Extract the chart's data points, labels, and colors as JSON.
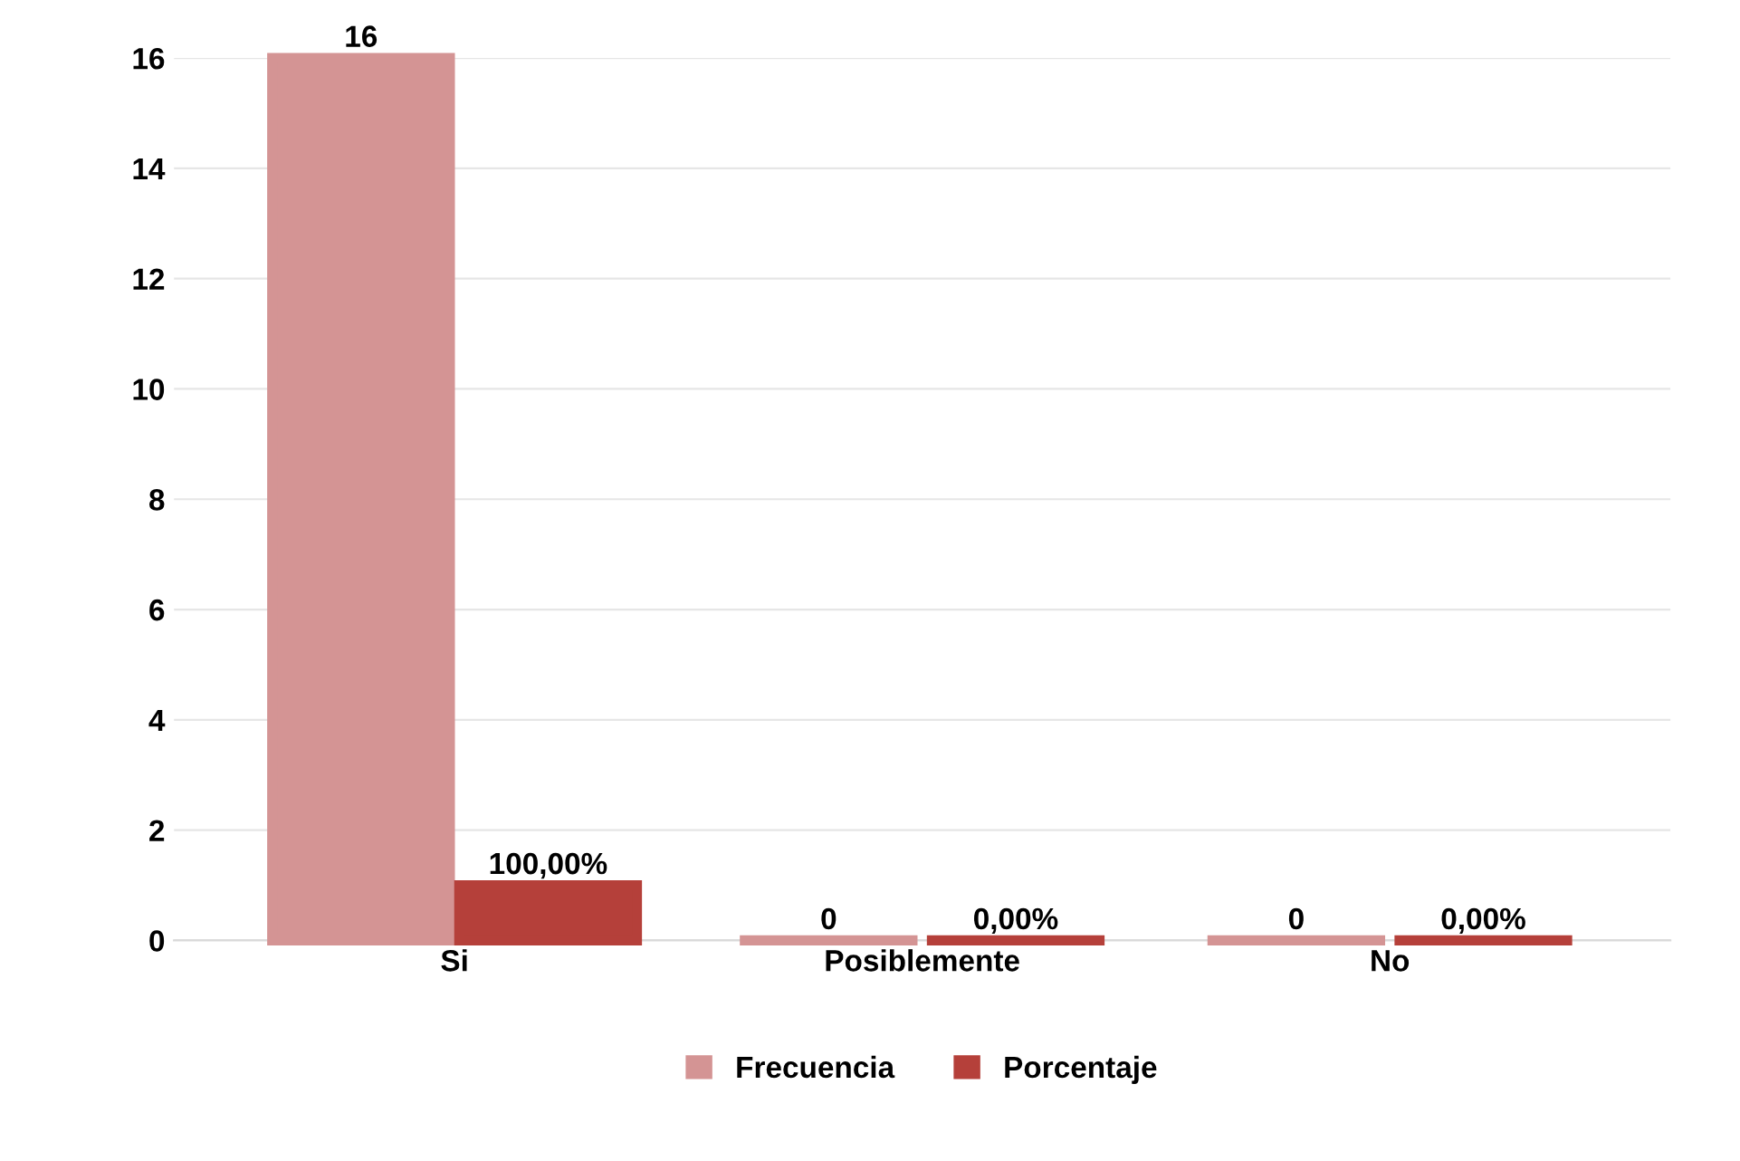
{
  "chart_data": {
    "type": "bar",
    "categories": [
      "Si",
      "Posiblemente",
      "No"
    ],
    "series": [
      {
        "name": "Frecuencia",
        "color": "#d49494",
        "values": [
          16,
          0,
          0
        ],
        "value_labels": [
          "16",
          "0",
          "0"
        ]
      },
      {
        "name": "Porcentaje",
        "color": "#b5403a",
        "values": [
          1,
          0,
          0
        ],
        "value_labels": [
          "100,00%",
          "0,00%",
          "0,00%"
        ]
      }
    ],
    "ylim": [
      0,
      16
    ],
    "yticks": [
      0,
      2,
      4,
      6,
      8,
      10,
      12,
      14,
      16
    ],
    "grid": "y",
    "legend": "bottom"
  }
}
